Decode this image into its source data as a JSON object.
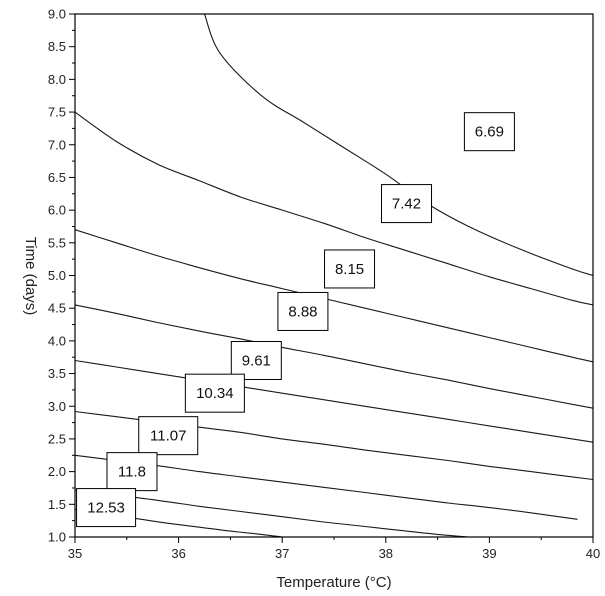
{
  "chart_data": {
    "type": "contour",
    "title": "",
    "xlabel": "Temperature (°C)",
    "ylabel": "Time (days)",
    "xlim": [
      35,
      40
    ],
    "ylim": [
      1.0,
      9.0
    ],
    "x_major_ticks": [
      "35",
      "36",
      "37",
      "38",
      "39",
      "40"
    ],
    "y_major_ticks": [
      "1.0",
      "1.5",
      "2.0",
      "2.5",
      "3.0",
      "3.5",
      "4.0",
      "4.5",
      "5.0",
      "5.5",
      "6.0",
      "6.5",
      "7.0",
      "7.5",
      "8.0",
      "8.5",
      "9.0"
    ],
    "grid": false,
    "levels": [
      {
        "label": "6.69",
        "label_at": [
          39.0,
          7.2
        ],
        "points": [
          [
            36.25,
            9.0
          ],
          [
            36.4,
            8.4
          ],
          [
            36.8,
            7.75
          ],
          [
            37.2,
            7.35
          ],
          [
            37.6,
            6.95
          ],
          [
            38.0,
            6.55
          ],
          [
            38.4,
            6.1
          ],
          [
            38.8,
            5.75
          ],
          [
            39.3,
            5.4
          ],
          [
            39.8,
            5.1
          ],
          [
            40.0,
            5.0
          ]
        ]
      },
      {
        "label": "7.42",
        "label_at": [
          38.2,
          6.1
        ],
        "points": [
          [
            35.0,
            7.5
          ],
          [
            35.4,
            7.05
          ],
          [
            35.8,
            6.7
          ],
          [
            36.2,
            6.45
          ],
          [
            36.6,
            6.2
          ],
          [
            37.0,
            6.0
          ],
          [
            37.4,
            5.8
          ],
          [
            37.8,
            5.58
          ],
          [
            38.2,
            5.38
          ],
          [
            38.6,
            5.18
          ],
          [
            39.0,
            4.98
          ],
          [
            39.4,
            4.8
          ],
          [
            39.8,
            4.62
          ],
          [
            40.0,
            4.55
          ]
        ]
      },
      {
        "label": "8.15",
        "label_at": [
          37.65,
          5.1
        ],
        "points": [
          [
            35.0,
            5.7
          ],
          [
            35.4,
            5.5
          ],
          [
            35.8,
            5.3
          ],
          [
            36.2,
            5.12
          ],
          [
            36.6,
            4.95
          ],
          [
            37.0,
            4.8
          ],
          [
            37.4,
            4.65
          ],
          [
            37.8,
            4.5
          ],
          [
            38.2,
            4.35
          ],
          [
            38.6,
            4.2
          ],
          [
            39.0,
            4.05
          ],
          [
            39.4,
            3.9
          ],
          [
            39.8,
            3.75
          ],
          [
            40.0,
            3.68
          ]
        ]
      },
      {
        "label": "8.88",
        "label_at": [
          37.2,
          4.45
        ],
        "points": [
          [
            35.0,
            4.55
          ],
          [
            35.4,
            4.42
          ],
          [
            35.8,
            4.28
          ],
          [
            36.2,
            4.15
          ],
          [
            36.6,
            4.03
          ],
          [
            37.0,
            3.9
          ],
          [
            37.4,
            3.78
          ],
          [
            37.8,
            3.65
          ],
          [
            38.2,
            3.52
          ],
          [
            38.6,
            3.4
          ],
          [
            39.0,
            3.27
          ],
          [
            39.4,
            3.15
          ],
          [
            39.8,
            3.03
          ],
          [
            40.0,
            2.97
          ]
        ]
      },
      {
        "label": "9.61",
        "label_at": [
          36.75,
          3.7
        ],
        "points": [
          [
            35.0,
            3.7
          ],
          [
            35.4,
            3.6
          ],
          [
            35.8,
            3.5
          ],
          [
            36.2,
            3.4
          ],
          [
            36.6,
            3.3
          ],
          [
            37.0,
            3.2
          ],
          [
            37.4,
            3.1
          ],
          [
            37.8,
            3.0
          ],
          [
            38.2,
            2.9
          ],
          [
            38.6,
            2.8
          ],
          [
            39.0,
            2.7
          ],
          [
            39.4,
            2.6
          ],
          [
            39.8,
            2.5
          ],
          [
            40.0,
            2.45
          ]
        ]
      },
      {
        "label": "10.34",
        "label_at": [
          36.35,
          3.2
        ],
        "points": [
          [
            35.0,
            2.92
          ],
          [
            35.4,
            2.84
          ],
          [
            35.8,
            2.76
          ],
          [
            36.2,
            2.68
          ],
          [
            36.6,
            2.6
          ],
          [
            37.0,
            2.5
          ],
          [
            37.4,
            2.42
          ],
          [
            37.8,
            2.33
          ],
          [
            38.2,
            2.25
          ],
          [
            38.6,
            2.17
          ],
          [
            39.0,
            2.08
          ],
          [
            39.4,
            2.0
          ],
          [
            39.8,
            1.92
          ],
          [
            40.0,
            1.88
          ]
        ]
      },
      {
        "label": "11.07",
        "label_at": [
          35.9,
          2.55
        ],
        "points": [
          [
            35.0,
            2.25
          ],
          [
            35.4,
            2.17
          ],
          [
            35.8,
            2.09
          ],
          [
            36.2,
            2.0
          ],
          [
            36.6,
            1.92
          ],
          [
            37.0,
            1.84
          ],
          [
            37.4,
            1.76
          ],
          [
            37.8,
            1.68
          ],
          [
            38.2,
            1.6
          ],
          [
            38.6,
            1.52
          ],
          [
            39.0,
            1.45
          ],
          [
            39.4,
            1.37
          ],
          [
            39.85,
            1.27
          ]
        ]
      },
      {
        "label": "11.8",
        "label_at": [
          35.55,
          2.0
        ],
        "points": [
          [
            35.0,
            1.72
          ],
          [
            35.4,
            1.64
          ],
          [
            35.8,
            1.56
          ],
          [
            36.2,
            1.47
          ],
          [
            36.6,
            1.39
          ],
          [
            37.0,
            1.31
          ],
          [
            37.4,
            1.23
          ],
          [
            37.8,
            1.16
          ],
          [
            38.2,
            1.09
          ],
          [
            38.5,
            1.04
          ],
          [
            38.8,
            1.0
          ]
        ]
      },
      {
        "label": "12.53",
        "label_at": [
          35.3,
          1.45
        ],
        "points": [
          [
            35.0,
            1.42
          ],
          [
            35.3,
            1.35
          ],
          [
            35.6,
            1.28
          ],
          [
            35.9,
            1.21
          ],
          [
            36.2,
            1.15
          ],
          [
            36.5,
            1.09
          ],
          [
            36.8,
            1.04
          ],
          [
            37.0,
            1.0
          ]
        ]
      }
    ]
  }
}
